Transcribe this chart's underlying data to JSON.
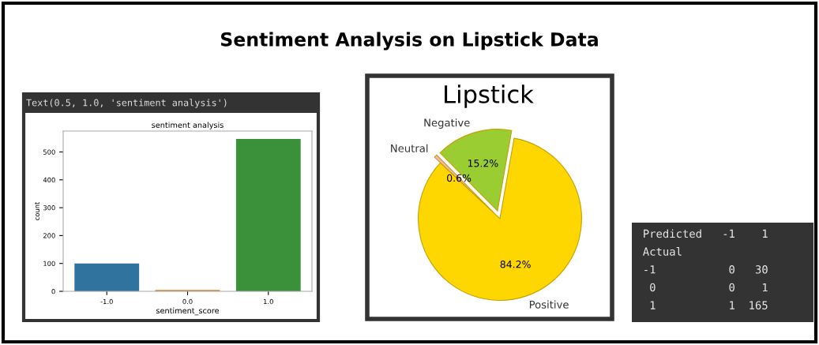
{
  "chart_data": [
    {
      "type": "bar",
      "title": "sentiment analysis",
      "xlabel": "sentiment_score",
      "ylabel": "count",
      "annotations": [
        "Sentiment Analysis on Lipstick Data",
        "Text(0.5, 1.0, 'sentiment analysis')"
      ],
      "categories": [
        "-1.0",
        "0.0",
        "1.0"
      ],
      "values": [
        100,
        5,
        547
      ],
      "colors": [
        "#31739f",
        "#e1812c",
        "#3a913a"
      ],
      "ylim": [
        0,
        575
      ],
      "yticks": [
        0,
        100,
        200,
        300,
        400,
        500
      ],
      "grid": false
    },
    {
      "type": "pie",
      "title": "Lipstick",
      "categories": [
        "Negative",
        "Neutral",
        "Positive"
      ],
      "values": [
        15.2,
        0.6,
        84.2
      ],
      "colors": [
        "#9acd32",
        "#f4b6c2",
        "#ffd700"
      ],
      "value_labels": [
        "15.2%",
        "0.6%",
        "84.2%"
      ]
    },
    {
      "type": "other",
      "annotations": [
        "Predicted   -1    1",
        "Actual",
        "-1           0   30",
        " 0           0    1",
        " 1           1  165"
      ]
    }
  ]
}
